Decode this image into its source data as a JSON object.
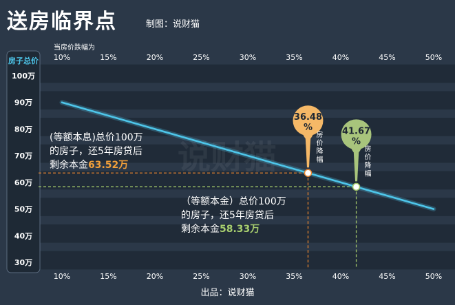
{
  "header": {
    "title": "送房临界点",
    "credit": "制图：说财猫"
  },
  "footer": {
    "source": "出品：说财猫"
  },
  "chart_data": {
    "type": "line",
    "xlabel": "当房价跌幅为",
    "ylabel": "房子总价",
    "x_ticks": [
      "10%",
      "15%",
      "20%",
      "25%",
      "30%",
      "35%",
      "40%",
      "45%",
      "50%"
    ],
    "y_ticks": [
      "100万",
      "90万",
      "80万",
      "70万",
      "60万",
      "50万",
      "40万",
      "30万"
    ],
    "xlim": [
      10,
      50
    ],
    "ylim": [
      30,
      100
    ],
    "series": [
      {
        "x": [
          10,
          50
        ],
        "y": [
          90,
          50
        ],
        "color": "#4ec6ea"
      }
    ],
    "markers": [
      {
        "x": 36.48,
        "y": 63.52,
        "pin_label": "36.48",
        "pin_unit": "%",
        "side_label": "房价降幅",
        "color": "#f5b867",
        "line_color": "#e9862f",
        "note": "(等额本息)总价100万的房子，还5年房贷后剩余本金",
        "note_lines": [
          "(等额本息)总价100万",
          "的房子，还5年房贷后",
          "剩余本金"
        ],
        "value_text": "63.52万"
      },
      {
        "x": 41.67,
        "y": 58.33,
        "pin_label": "41.67",
        "pin_unit": "%",
        "side_label": "房价降幅",
        "color": "#a8c47c",
        "line_color": "#a3c76a",
        "note": "（等额本金）总价100万的房子，还5年房贷后剩余本金",
        "note_lines": [
          "（等额本金）总价100万",
          "的房子，还5年房贷后",
          "剩余本金"
        ],
        "value_text": "58.33万"
      }
    ],
    "watermark": "说财猫",
    "grid": "horizontal bands"
  }
}
